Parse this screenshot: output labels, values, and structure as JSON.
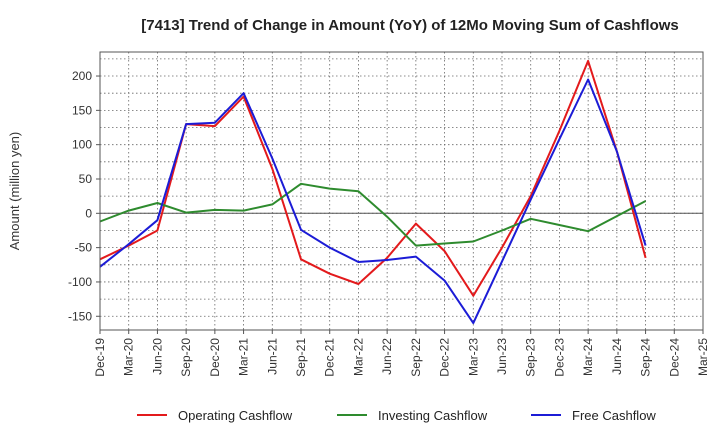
{
  "chart_data": {
    "type": "line",
    "title": "[7413]  Trend of Change in Amount (YoY) of 12Mo Moving Sum of Cashflows",
    "xlabel": "",
    "ylabel": "Amount (million yen)",
    "ylim": [
      -170,
      235
    ],
    "yticks": [
      200,
      150,
      100,
      50,
      0,
      -50,
      -100,
      -150
    ],
    "categories": [
      "Dec-19",
      "Mar-20",
      "Jun-20",
      "Sep-20",
      "Dec-20",
      "Mar-21",
      "Jun-21",
      "Sep-21",
      "Dec-21",
      "Mar-22",
      "Jun-22",
      "Sep-22",
      "Dec-22",
      "Mar-23",
      "Jun-23",
      "Sep-23",
      "Dec-23",
      "Mar-24",
      "Jun-24",
      "Sep-24",
      "Dec-24",
      "Mar-25"
    ],
    "series": [
      {
        "name": "Operating Cashflow",
        "color": "#e31a1c",
        "values": [
          -67,
          -47,
          -25,
          130,
          127,
          170,
          65,
          -67,
          -88,
          -103,
          -65,
          -15,
          -55,
          -120,
          -50,
          25,
          120,
          222,
          90,
          -65,
          null,
          null
        ]
      },
      {
        "name": "Investing Cashflow",
        "color": "#2e8b2e",
        "values": [
          -12,
          4,
          15,
          1,
          5,
          4,
          13,
          43,
          36,
          32,
          -5,
          -47,
          -44,
          -41,
          -25,
          -8,
          -17,
          -26,
          -4,
          18,
          null,
          null
        ]
      },
      {
        "name": "Free Cashflow",
        "color": "#1c1cd6",
        "values": [
          -78,
          -45,
          -10,
          130,
          132,
          175,
          80,
          -24,
          -50,
          -71,
          -68,
          -63,
          -98,
          -160,
          -70,
          20,
          108,
          195,
          90,
          -47,
          null,
          null
        ]
      }
    ],
    "legend_position": "bottom",
    "grid": true
  }
}
